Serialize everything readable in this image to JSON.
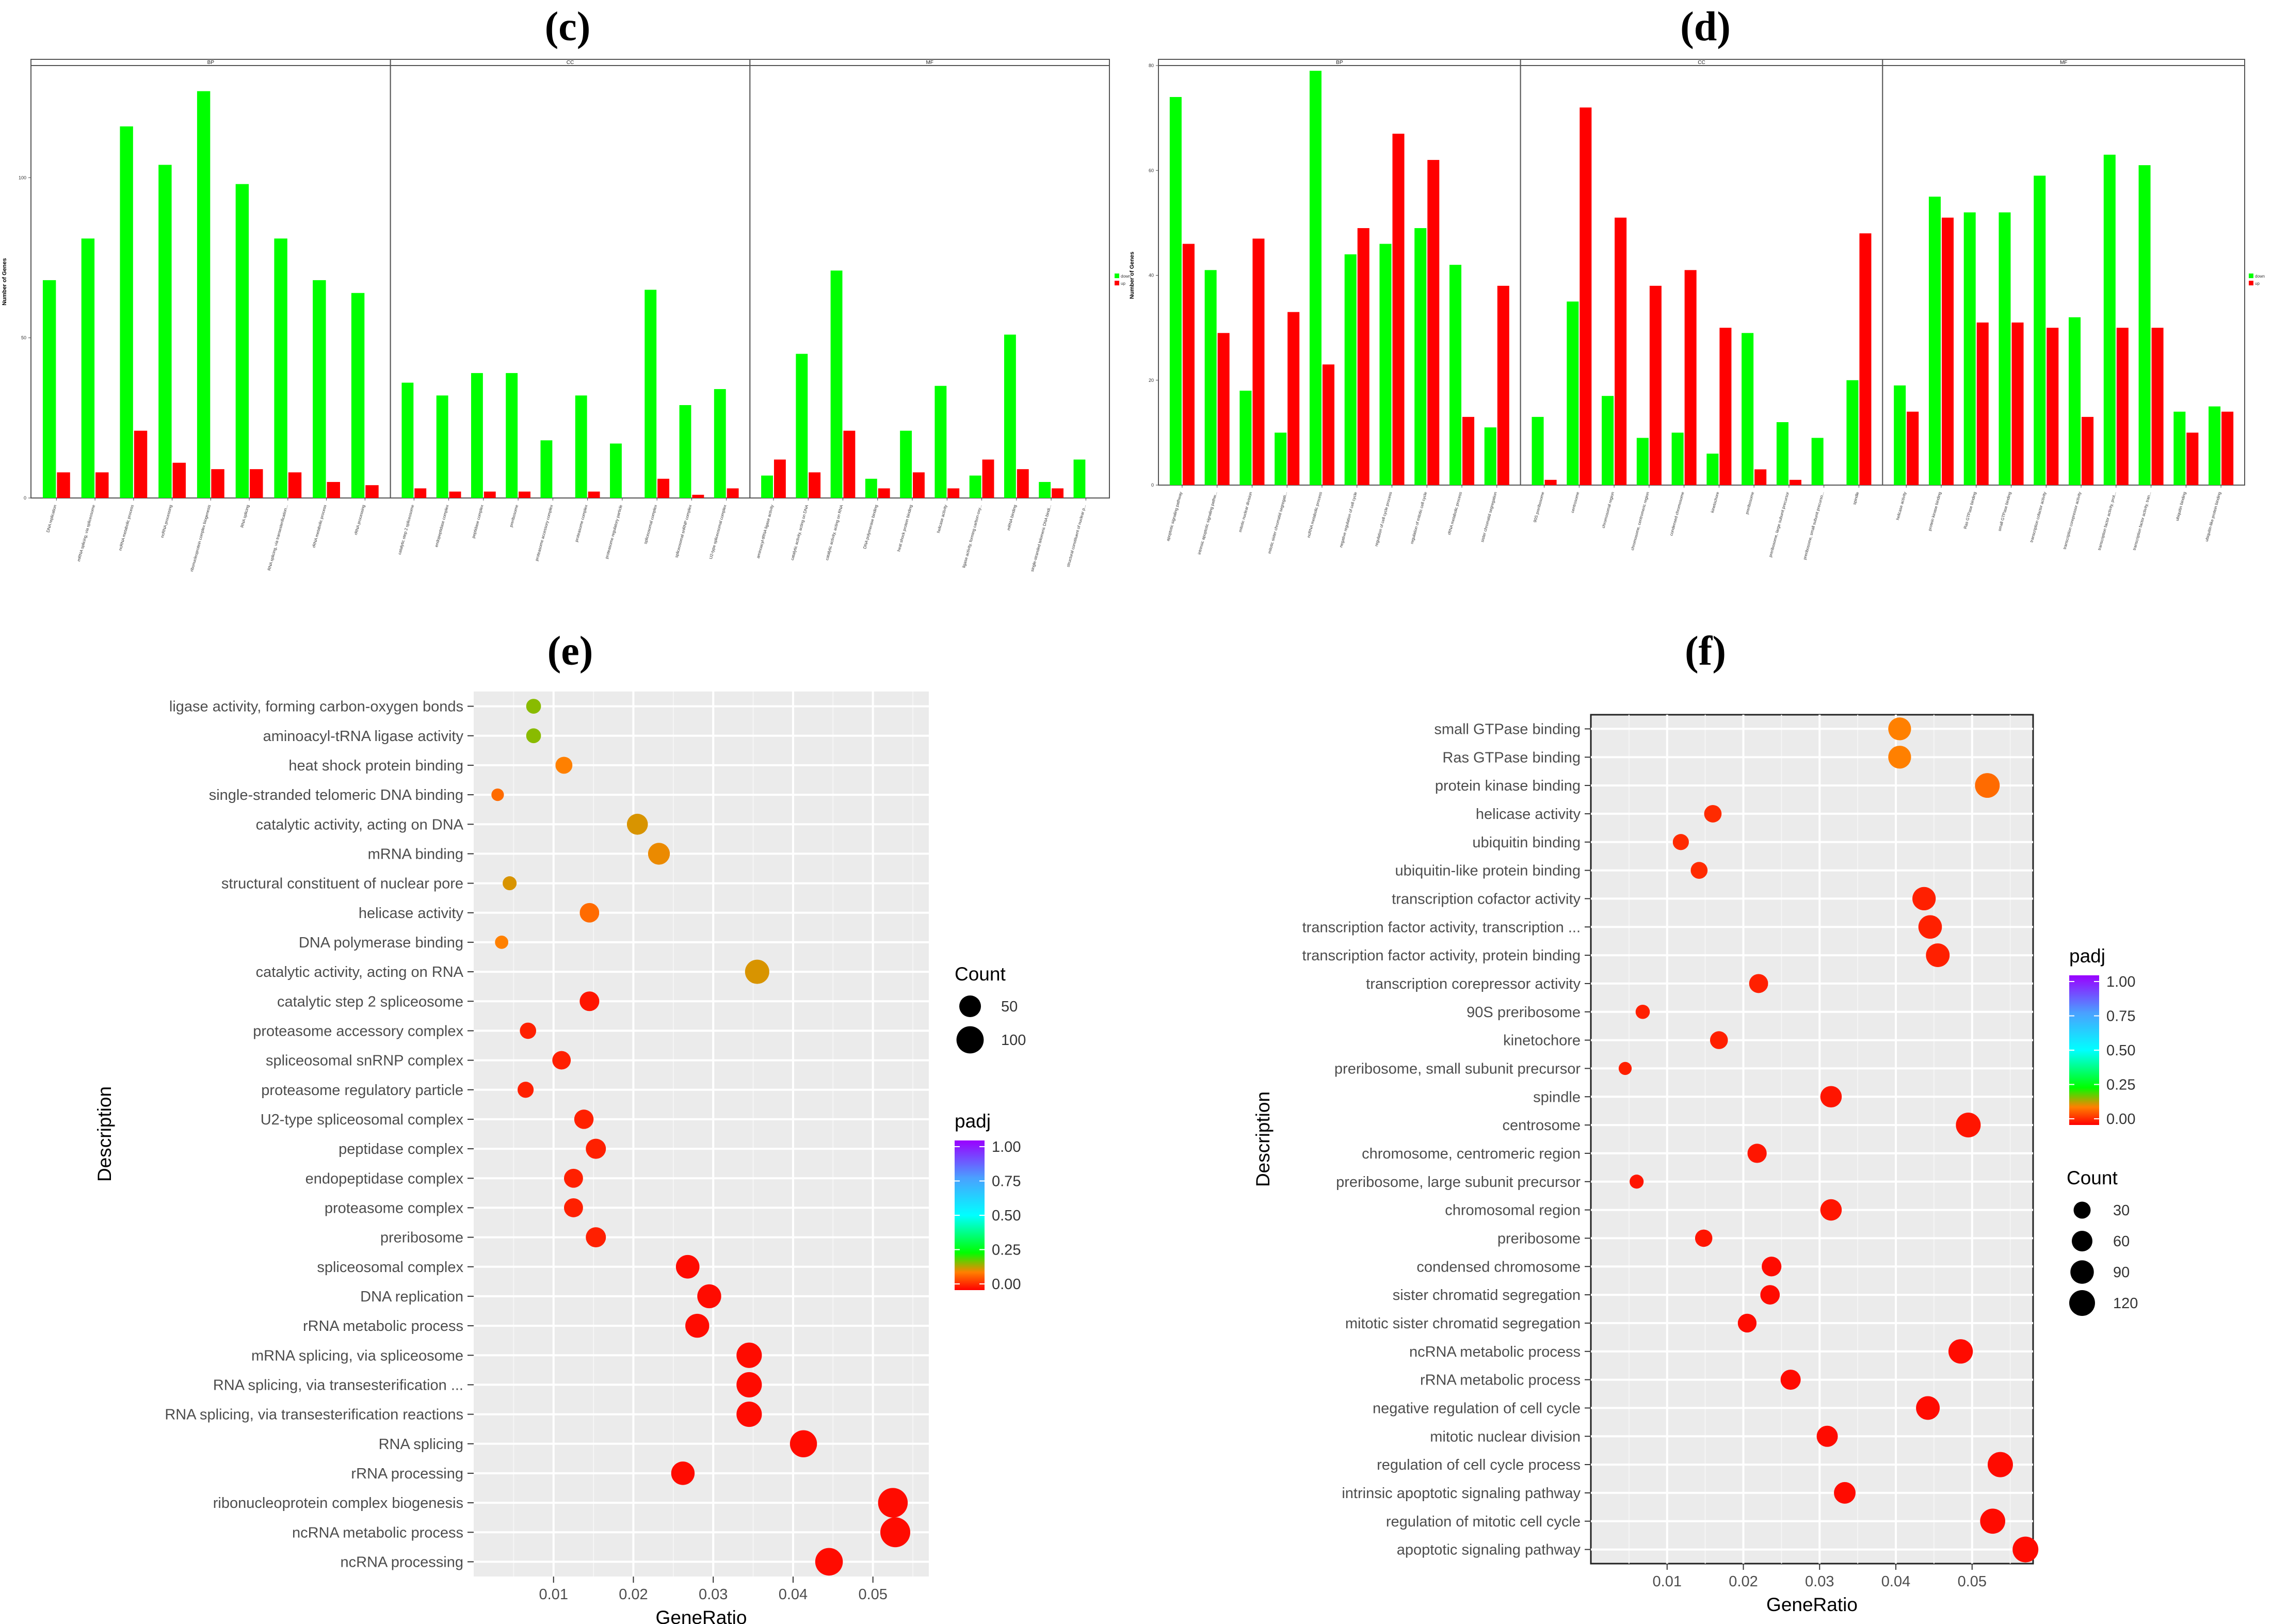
{
  "panels": {
    "c": "(c)",
    "d": "(d)",
    "e": "(e)",
    "f": "(f)"
  },
  "chart_data": [
    {
      "id": "c",
      "type": "bar",
      "ylabel": "Number of Genes",
      "ylim": [
        0,
        135
      ],
      "yticks": [
        0,
        50,
        100
      ],
      "legend": {
        "position": "right",
        "entries": [
          {
            "name": "down",
            "color": "#00ff00"
          },
          {
            "name": "up",
            "color": "#ff0000"
          }
        ]
      },
      "facets": [
        {
          "name": "BP",
          "categories": [
            "DNA replication",
            "mRNA splicing, via spliceosome",
            "ncRNA metabolic process",
            "ncRNA processing",
            "ribonucleoprotein complex biogenesis",
            "RNA splicing",
            "RNA splicing, via transesterification...",
            "rRNA metabolic process",
            "rRNA processing"
          ],
          "series": [
            {
              "name": "down",
              "values": [
                68,
                81,
                116,
                104,
                127,
                98,
                81,
                68,
                64
              ]
            },
            {
              "name": "up",
              "values": [
                8,
                8,
                21,
                11,
                9,
                9,
                8,
                5,
                4
              ]
            }
          ]
        },
        {
          "name": "CC",
          "categories": [
            "catalytic step 2 spliceosome",
            "endopeptidase complex",
            "peptidase complex",
            "preribosome",
            "proteasome accessory complex",
            "proteasome complex",
            "proteasome regulatory particle",
            "spliceosomal complex",
            "spliceosomal snRNP complex",
            "U2-type spliceosomal complex"
          ],
          "series": [
            {
              "name": "down",
              "values": [
                36,
                32,
                39,
                39,
                18,
                32,
                17,
                65,
                29,
                34
              ]
            },
            {
              "name": "up",
              "values": [
                3,
                2,
                2,
                2,
                0,
                2,
                0,
                6,
                1,
                3
              ]
            }
          ]
        },
        {
          "name": "MF",
          "categories": [
            "aminoacyl-tRNA ligase activity",
            "catalytic activity, acting on DNA",
            "catalytic activity, acting on RNA",
            "DNA polymerase binding",
            "heat shock protein binding",
            "helicase activity",
            "ligase activity, forming carbon-oxy...",
            "mRNA binding",
            "single-stranded telomeric DNA bindi...",
            "structural constituent of nuclear p..."
          ],
          "series": [
            {
              "name": "down",
              "values": [
                7,
                45,
                71,
                6,
                21,
                35,
                7,
                51,
                5,
                12
              ]
            },
            {
              "name": "up",
              "values": [
                12,
                8,
                21,
                3,
                8,
                3,
                12,
                9,
                3,
                0
              ]
            }
          ]
        }
      ]
    },
    {
      "id": "d",
      "type": "bar",
      "ylabel": "Number of Genes",
      "ylim": [
        0,
        80
      ],
      "yticks": [
        0,
        20,
        40,
        60,
        80
      ],
      "legend": {
        "position": "right",
        "entries": [
          {
            "name": "down",
            "color": "#00ff00"
          },
          {
            "name": "up",
            "color": "#ff0000"
          }
        ]
      },
      "facets": [
        {
          "name": "BP",
          "categories": [
            "apoptotic signaling pathway",
            "intrinsic apoptotic signaling pathw...",
            "mitotic nuclear division",
            "mitotic sister chromatid segregati...",
            "ncRNA metabolic process",
            "negative regulation of cell cycle",
            "regulation of cell cycle process",
            "regulation of mitotic cell cycle",
            "rRNA metabolic process",
            "sister chromatid segregation"
          ],
          "series": [
            {
              "name": "down",
              "values": [
                74,
                41,
                18,
                10,
                79,
                44,
                46,
                49,
                42,
                11
              ]
            },
            {
              "name": "up",
              "values": [
                46,
                29,
                47,
                33,
                23,
                49,
                67,
                62,
                13,
                38
              ]
            }
          ]
        },
        {
          "name": "CC",
          "categories": [
            "90S preribosome",
            "centrosome",
            "chromosomal region",
            "chromosome, centromeric region",
            "condensed chromosome",
            "kinetochore",
            "preribosome",
            "preribosome, large subunit precursor",
            "preribosome, small subunit precurso...",
            "spindle"
          ],
          "series": [
            {
              "name": "down",
              "values": [
                13,
                35,
                17,
                9,
                10,
                6,
                29,
                12,
                9,
                20
              ]
            },
            {
              "name": "up",
              "values": [
                1,
                72,
                51,
                38,
                41,
                30,
                3,
                1,
                0,
                48
              ]
            }
          ]
        },
        {
          "name": "MF",
          "categories": [
            "helicase activity",
            "protein kinase binding",
            "Ras GTPase binding",
            "small GTPase binding",
            "transcription cofactor activity",
            "transcription corepressor activity",
            "transcription factor activity, prot...",
            "transcription factor activity, tran...",
            "ubiquitin binding",
            "ubiquitin-like protein binding"
          ],
          "series": [
            {
              "name": "down",
              "values": [
                19,
                55,
                52,
                52,
                59,
                32,
                63,
                61,
                14,
                15
              ]
            },
            {
              "name": "up",
              "values": [
                14,
                51,
                31,
                31,
                30,
                13,
                30,
                30,
                10,
                14
              ]
            }
          ]
        }
      ]
    },
    {
      "id": "e",
      "type": "scatter",
      "xlabel": "GeneRatio",
      "ylabel": "Description",
      "xlim": [
        0.0,
        0.057
      ],
      "xticks": [
        0.01,
        0.02,
        0.03,
        0.04,
        0.05
      ],
      "items": [
        {
          "label": "ligase activity, forming carbon-oxygen bonds",
          "x": 0.0075,
          "count": 12,
          "padj": 0.18
        },
        {
          "label": "aminoacyl-tRNA ligase activity",
          "x": 0.0075,
          "count": 12,
          "padj": 0.18
        },
        {
          "label": "heat shock protein binding",
          "x": 0.0113,
          "count": 21,
          "padj": 0.12
        },
        {
          "label": "single-stranded telomeric DNA binding",
          "x": 0.003,
          "count": 5,
          "padj": 0.1
        },
        {
          "label": "catalytic activity, acting on DNA",
          "x": 0.0205,
          "count": 45,
          "padj": 0.14
        },
        {
          "label": "mRNA binding",
          "x": 0.0232,
          "count": 51,
          "padj": 0.13
        },
        {
          "label": "structural constituent of nuclear pore",
          "x": 0.0045,
          "count": 9,
          "padj": 0.14
        },
        {
          "label": "helicase activity",
          "x": 0.0145,
          "count": 35,
          "padj": 0.1
        },
        {
          "label": "DNA polymerase binding",
          "x": 0.0035,
          "count": 7,
          "padj": 0.12
        },
        {
          "label": "catalytic activity, acting on RNA",
          "x": 0.0355,
          "count": 71,
          "padj": 0.14
        },
        {
          "label": "catalytic step 2 spliceosome",
          "x": 0.0145,
          "count": 36,
          "padj": 0.02
        },
        {
          "label": "proteasome accessory complex",
          "x": 0.0068,
          "count": 18,
          "padj": 0.03
        },
        {
          "label": "spliceosomal snRNP complex",
          "x": 0.011,
          "count": 29,
          "padj": 0.03
        },
        {
          "label": "proteasome regulatory particle",
          "x": 0.0065,
          "count": 17,
          "padj": 0.03
        },
        {
          "label": "U2-type spliceosomal complex",
          "x": 0.0138,
          "count": 34,
          "padj": 0.03
        },
        {
          "label": "peptidase complex",
          "x": 0.0153,
          "count": 39,
          "padj": 0.03
        },
        {
          "label": "endopeptidase complex",
          "x": 0.0125,
          "count": 32,
          "padj": 0.03
        },
        {
          "label": "proteasome complex",
          "x": 0.0125,
          "count": 32,
          "padj": 0.03
        },
        {
          "label": "preribosome",
          "x": 0.0153,
          "count": 39,
          "padj": 0.03
        },
        {
          "label": "spliceosomal complex",
          "x": 0.0268,
          "count": 65,
          "padj": 0.01
        },
        {
          "label": "DNA replication",
          "x": 0.0295,
          "count": 68,
          "padj": 0.01
        },
        {
          "label": "rRNA metabolic process",
          "x": 0.028,
          "count": 68,
          "padj": 0.01
        },
        {
          "label": "mRNA splicing, via spliceosome",
          "x": 0.0345,
          "count": 81,
          "padj": 0.01
        },
        {
          "label": "RNA splicing, via transesterification ...",
          "x": 0.0345,
          "count": 81,
          "padj": 0.01
        },
        {
          "label": "RNA splicing, via transesterification reactions",
          "x": 0.0345,
          "count": 81,
          "padj": 0.01
        },
        {
          "label": "RNA splicing",
          "x": 0.0413,
          "count": 98,
          "padj": 0.01
        },
        {
          "label": "rRNA processing",
          "x": 0.0262,
          "count": 64,
          "padj": 0.01
        },
        {
          "label": "ribonucleoprotein complex biogenesis",
          "x": 0.0525,
          "count": 127,
          "padj": 0.01
        },
        {
          "label": "ncRNA metabolic process",
          "x": 0.0528,
          "count": 130,
          "padj": 0.01
        },
        {
          "label": "ncRNA processing",
          "x": 0.0445,
          "count": 104,
          "padj": 0.01
        }
      ],
      "size_legend": {
        "title": "Count",
        "values": [
          50,
          100
        ]
      },
      "color_legend": {
        "title": "padj",
        "ticks": [
          "1.00",
          "0.75",
          "0.50",
          "0.25",
          "0.00"
        ]
      }
    },
    {
      "id": "f",
      "type": "scatter",
      "xlabel": "GeneRatio",
      "ylabel": "Description",
      "xlim": [
        0.0,
        0.058
      ],
      "xticks": [
        0.01,
        0.02,
        0.03,
        0.04,
        0.05
      ],
      "items": [
        {
          "label": "small GTPase binding",
          "x": 0.0405,
          "count": 83,
          "padj": 0.12
        },
        {
          "label": "Ras GTPase binding",
          "x": 0.0405,
          "count": 83,
          "padj": 0.12
        },
        {
          "label": "protein kinase binding",
          "x": 0.052,
          "count": 106,
          "padj": 0.1
        },
        {
          "label": "helicase activity",
          "x": 0.016,
          "count": 33,
          "padj": 0.04
        },
        {
          "label": "ubiquitin binding",
          "x": 0.0118,
          "count": 24,
          "padj": 0.04
        },
        {
          "label": "ubiquitin-like protein binding",
          "x": 0.0142,
          "count": 29,
          "padj": 0.04
        },
        {
          "label": "transcription cofactor activity",
          "x": 0.0437,
          "count": 89,
          "padj": 0.03
        },
        {
          "label": "transcription factor activity, transcription ...",
          "x": 0.0445,
          "count": 91,
          "padj": 0.03
        },
        {
          "label": "transcription factor activity, protein binding",
          "x": 0.0455,
          "count": 93,
          "padj": 0.03
        },
        {
          "label": "transcription corepressor activity",
          "x": 0.022,
          "count": 45,
          "padj": 0.03
        },
        {
          "label": "90S preribosome",
          "x": 0.0068,
          "count": 14,
          "padj": 0.03
        },
        {
          "label": "kinetochore",
          "x": 0.0168,
          "count": 36,
          "padj": 0.03
        },
        {
          "label": "preribosome, small subunit precursor",
          "x": 0.0045,
          "count": 9,
          "padj": 0.03
        },
        {
          "label": "spindle",
          "x": 0.0315,
          "count": 68,
          "padj": 0.02
        },
        {
          "label": "centrosome",
          "x": 0.0495,
          "count": 107,
          "padj": 0.02
        },
        {
          "label": "chromosome, centromeric region",
          "x": 0.0218,
          "count": 47,
          "padj": 0.02
        },
        {
          "label": "preribosome, large subunit precursor",
          "x": 0.006,
          "count": 13,
          "padj": 0.02
        },
        {
          "label": "chromosomal region",
          "x": 0.0315,
          "count": 68,
          "padj": 0.02
        },
        {
          "label": "preribosome",
          "x": 0.0148,
          "count": 32,
          "padj": 0.02
        },
        {
          "label": "condensed chromosome",
          "x": 0.0237,
          "count": 51,
          "padj": 0.01
        },
        {
          "label": "sister chromatid segregation",
          "x": 0.0235,
          "count": 49,
          "padj": 0.01
        },
        {
          "label": "mitotic sister chromatid segregation",
          "x": 0.0205,
          "count": 43,
          "padj": 0.01
        },
        {
          "label": "ncRNA metabolic process",
          "x": 0.0485,
          "count": 102,
          "padj": 0.01
        },
        {
          "label": "rRNA metabolic process",
          "x": 0.0262,
          "count": 55,
          "padj": 0.01
        },
        {
          "label": "negative regulation of cell cycle",
          "x": 0.0442,
          "count": 93,
          "padj": 0.01
        },
        {
          "label": "mitotic nuclear division",
          "x": 0.031,
          "count": 65,
          "padj": 0.01
        },
        {
          "label": "regulation of cell cycle process",
          "x": 0.0537,
          "count": 113,
          "padj": 0.01
        },
        {
          "label": "intrinsic apoptotic signaling pathway",
          "x": 0.0333,
          "count": 70,
          "padj": 0.01
        },
        {
          "label": "regulation of mitotic cell cycle",
          "x": 0.0527,
          "count": 111,
          "padj": 0.01
        },
        {
          "label": "apoptotic signaling pathway",
          "x": 0.057,
          "count": 120,
          "padj": 0.01
        }
      ],
      "size_legend": {
        "title": "Count",
        "values": [
          30,
          60,
          90,
          120
        ]
      },
      "color_legend": {
        "title": "padj",
        "ticks": [
          "1.00",
          "0.75",
          "0.50",
          "0.25",
          "0.00"
        ]
      }
    }
  ]
}
